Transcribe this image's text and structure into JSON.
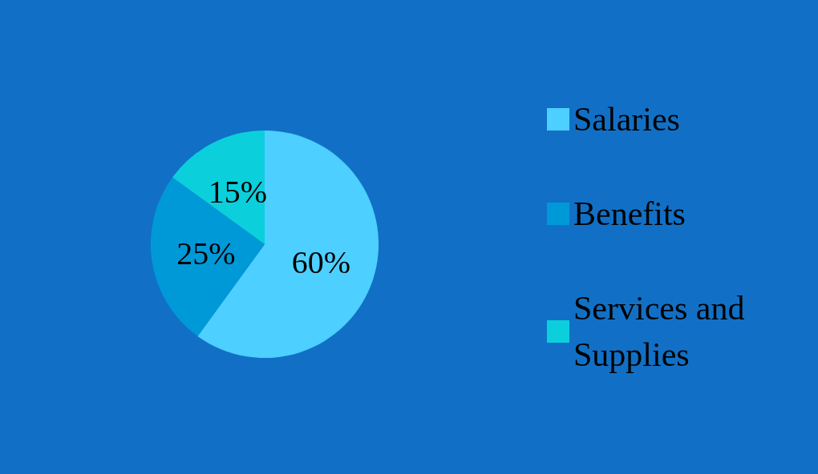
{
  "chart_data": {
    "type": "pie",
    "categories": [
      "Salaries",
      "Benefits",
      "Services and Supplies"
    ],
    "values": [
      60,
      25,
      15
    ],
    "value_labels": [
      "60%",
      "25%",
      "15%"
    ],
    "colors": [
      "#4dcfff",
      "#0099d8",
      "#0ccfdc"
    ],
    "legend": "right"
  }
}
